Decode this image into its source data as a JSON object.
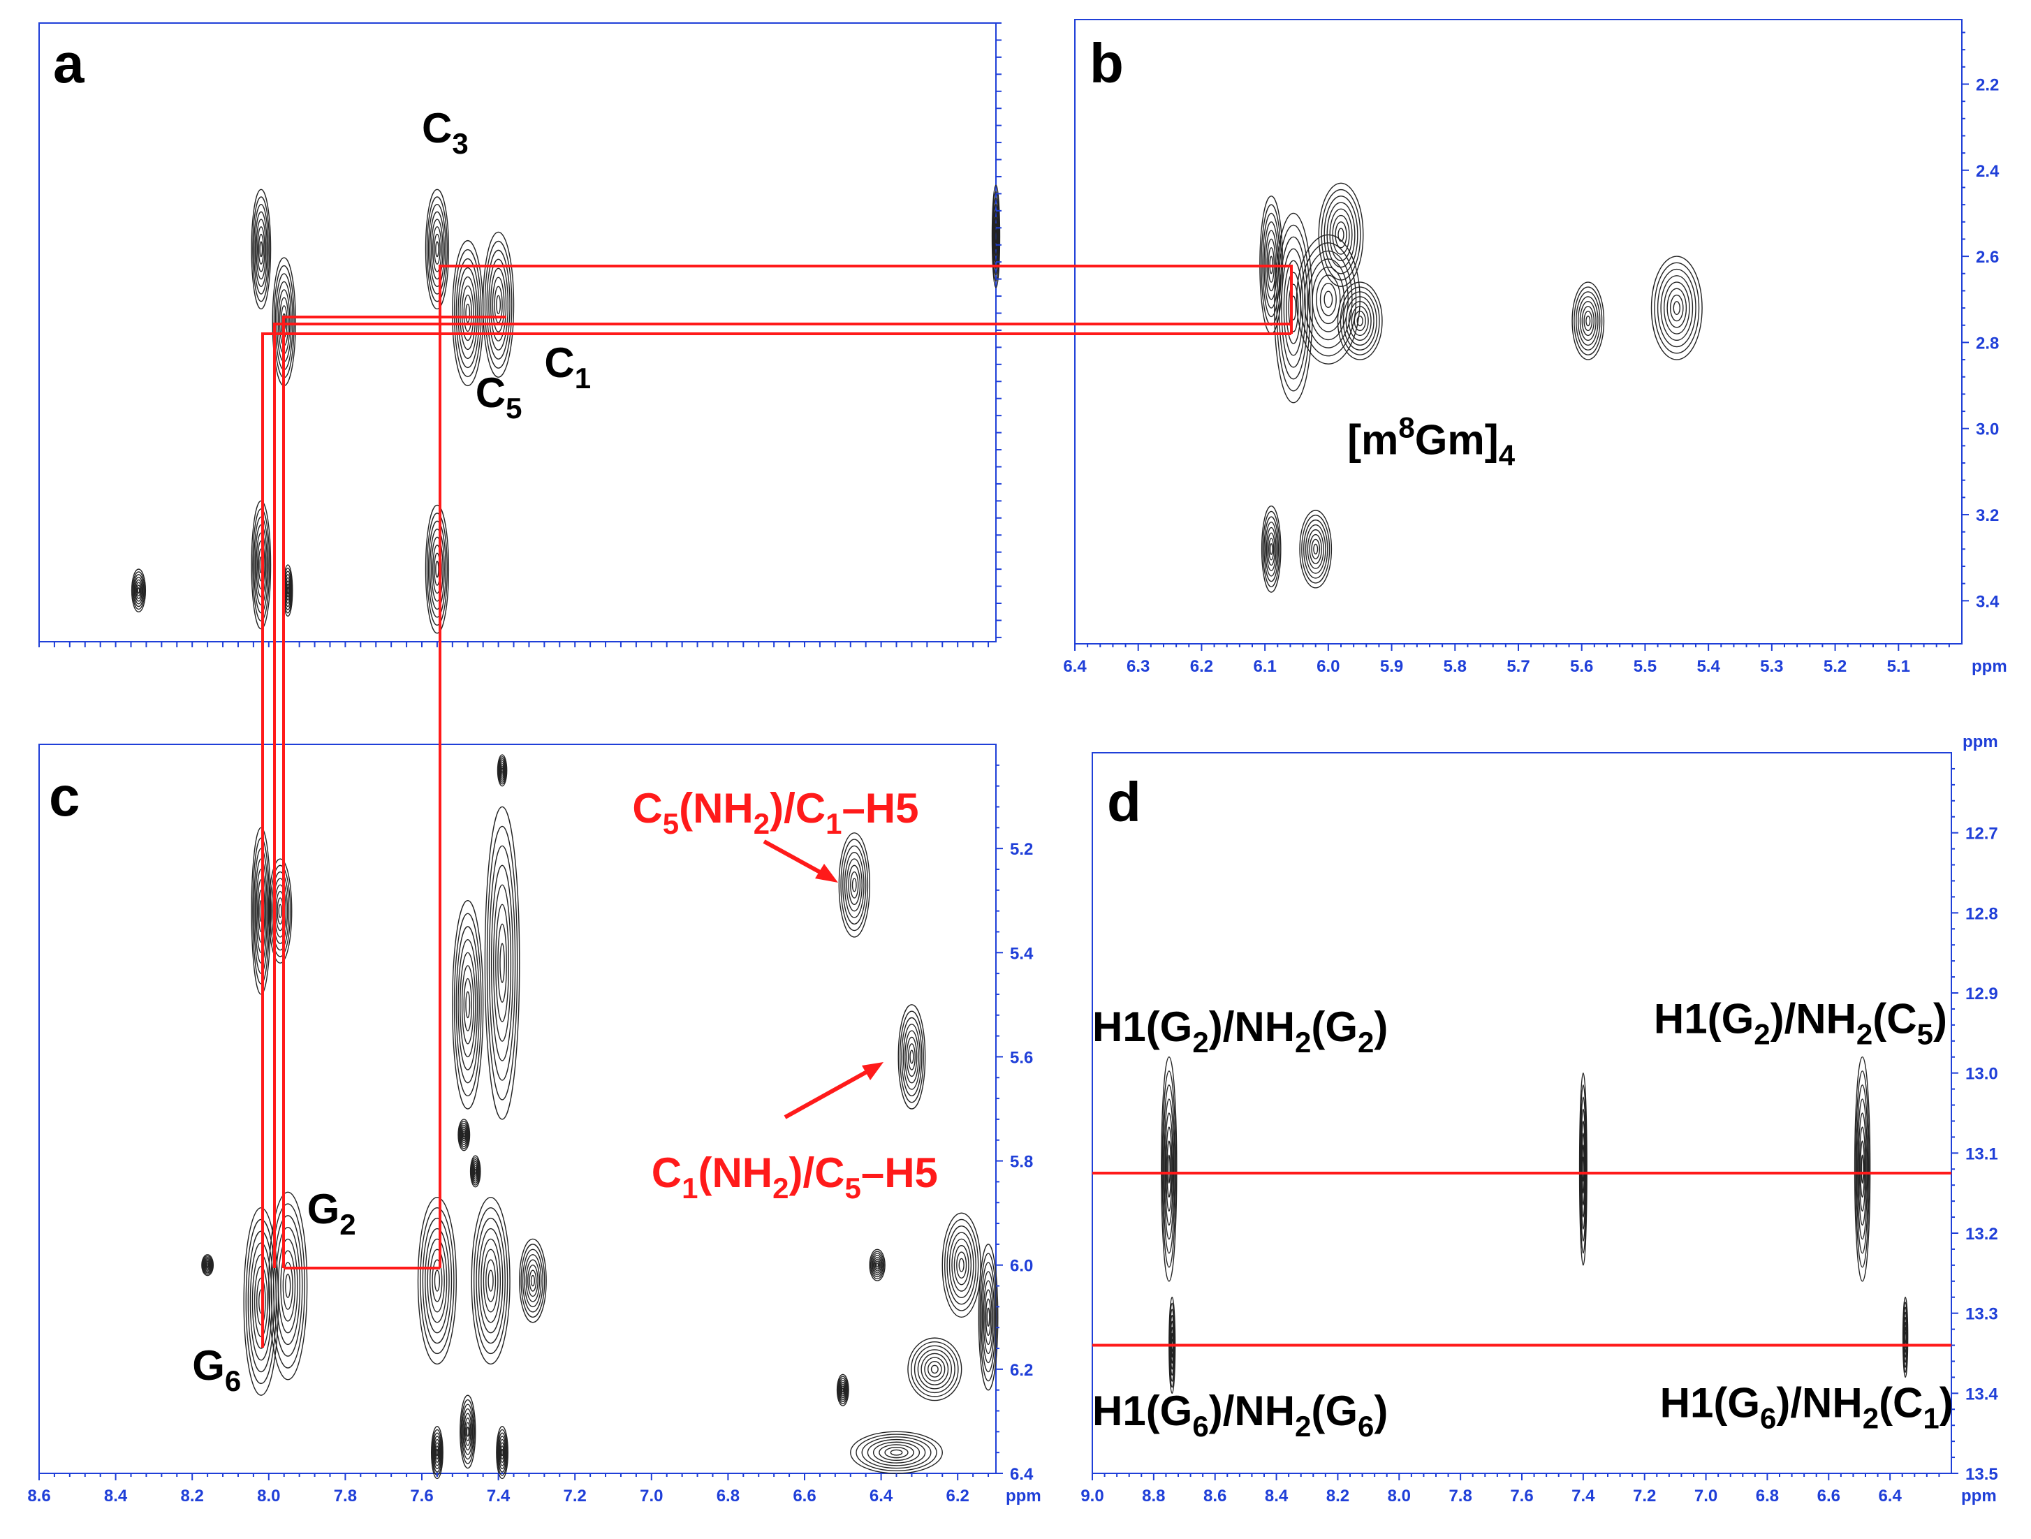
{
  "colors": {
    "axis": "#1f3fd8",
    "peak": "#222222",
    "highlight": "#ff1a1a"
  },
  "axis_unit": "ppm",
  "chart_data": [
    {
      "type": "scatter",
      "panel": "a",
      "panel_label": "a",
      "title": "",
      "xlabel": "",
      "ylabel": "",
      "xlim": [
        8.6,
        6.1
      ],
      "ylim": [
        2.05,
        3.5
      ],
      "reversed_axes": true,
      "x_ticks": [],
      "y_ticks": [],
      "annotations": [
        {
          "text": "C",
          "sub": "3",
          "x": 7.6,
          "y": 2.33
        },
        {
          "text": "C",
          "sub": "5",
          "x": 7.46,
          "y": 2.95
        },
        {
          "text": "C",
          "sub": "1",
          "x": 7.28,
          "y": 2.88
        }
      ],
      "peaks": [
        {
          "x": 8.02,
          "y": 2.58,
          "w": 0.025,
          "h": 0.14,
          "label": ""
        },
        {
          "x": 7.96,
          "y": 2.75,
          "w": 0.03,
          "h": 0.15,
          "label": ""
        },
        {
          "x": 7.56,
          "y": 2.58,
          "w": 0.03,
          "h": 0.14,
          "label": "C3"
        },
        {
          "x": 7.48,
          "y": 2.73,
          "w": 0.04,
          "h": 0.17,
          "label": "C5"
        },
        {
          "x": 7.4,
          "y": 2.71,
          "w": 0.04,
          "h": 0.17,
          "label": "C1"
        },
        {
          "x": 8.02,
          "y": 3.32,
          "w": 0.025,
          "h": 0.15,
          "label": ""
        },
        {
          "x": 7.56,
          "y": 3.33,
          "w": 0.03,
          "h": 0.15,
          "label": ""
        },
        {
          "x": 7.95,
          "y": 3.38,
          "w": 0.012,
          "h": 0.06,
          "label": ""
        },
        {
          "x": 8.34,
          "y": 3.38,
          "w": 0.018,
          "h": 0.05,
          "label": ""
        },
        {
          "x": 6.1,
          "y": 2.55,
          "w": 0.01,
          "h": 0.12,
          "label": ""
        }
      ]
    },
    {
      "type": "scatter",
      "panel": "b",
      "panel_label": "b",
      "title": "",
      "xlabel": "ppm",
      "ylabel": "",
      "xlim": [
        6.4,
        5.0
      ],
      "ylim": [
        2.05,
        3.5
      ],
      "reversed_axes": true,
      "x_ticks": [
        6.4,
        6.3,
        6.2,
        6.1,
        6.0,
        5.9,
        5.8,
        5.7,
        5.6,
        5.5,
        5.4,
        5.3,
        5.2,
        5.1
      ],
      "y_ticks": [
        2.2,
        2.4,
        2.6,
        2.8,
        3.0,
        3.2,
        3.4
      ],
      "annotations": [
        {
          "text": "[m",
          "sup": "8",
          "mid": "Gm]",
          "sub": "4",
          "x": 5.97,
          "y": 3.06
        }
      ],
      "peaks": [
        {
          "x": 6.09,
          "y": 2.62,
          "w": 0.018,
          "h": 0.16,
          "label": ""
        },
        {
          "x": 6.055,
          "y": 2.72,
          "w": 0.03,
          "h": 0.22,
          "label": ""
        },
        {
          "x": 6.0,
          "y": 2.7,
          "w": 0.05,
          "h": 0.15,
          "label": ""
        },
        {
          "x": 5.98,
          "y": 2.55,
          "w": 0.035,
          "h": 0.12,
          "label": ""
        },
        {
          "x": 5.95,
          "y": 2.75,
          "w": 0.035,
          "h": 0.09,
          "label": ""
        },
        {
          "x": 5.59,
          "y": 2.75,
          "w": 0.025,
          "h": 0.09,
          "label": ""
        },
        {
          "x": 5.45,
          "y": 2.72,
          "w": 0.04,
          "h": 0.12,
          "label": ""
        },
        {
          "x": 6.09,
          "y": 3.28,
          "w": 0.015,
          "h": 0.1,
          "label": ""
        },
        {
          "x": 6.02,
          "y": 3.28,
          "w": 0.025,
          "h": 0.09,
          "label": ""
        }
      ]
    },
    {
      "type": "scatter",
      "panel": "c",
      "panel_label": "c",
      "title": "",
      "xlabel": "ppm",
      "ylabel": "",
      "xlim": [
        8.6,
        6.1
      ],
      "ylim": [
        5.0,
        6.4
      ],
      "reversed_axes": true,
      "x_ticks": [
        8.6,
        8.4,
        8.2,
        8.0,
        7.8,
        7.6,
        7.4,
        7.2,
        7.0,
        6.8,
        6.6,
        6.4,
        6.2
      ],
      "y_ticks": [
        5.2,
        5.4,
        5.6,
        5.8,
        6.0,
        6.2,
        6.4
      ],
      "annotations": [
        {
          "text": "G",
          "sub": "2",
          "x": 7.9,
          "y": 5.92
        },
        {
          "text": "G",
          "sub": "6",
          "x": 8.2,
          "y": 6.22
        },
        {
          "text": "C",
          "sub": "5",
          "after": "(NH",
          "sub2": "2",
          "after2": ")/C",
          "sub3": "1",
          "after3": "–H5",
          "x": 7.05,
          "y": 5.15,
          "red": true
        },
        {
          "text": "C",
          "sub": "1",
          "after": "(NH",
          "sub2": "2",
          "after2": ")/C",
          "sub3": "5",
          "after3": "–H5",
          "x": 7.0,
          "y": 5.85,
          "red": true
        }
      ],
      "peaks": [
        {
          "x": 8.02,
          "y": 5.32,
          "w": 0.025,
          "h": 0.16,
          "label": ""
        },
        {
          "x": 7.97,
          "y": 5.32,
          "w": 0.03,
          "h": 0.1,
          "label": ""
        },
        {
          "x": 7.48,
          "y": 5.5,
          "w": 0.04,
          "h": 0.2,
          "label": ""
        },
        {
          "x": 7.39,
          "y": 5.42,
          "w": 0.045,
          "h": 0.3,
          "label": ""
        },
        {
          "x": 7.39,
          "y": 5.05,
          "w": 0.012,
          "h": 0.03,
          "label": ""
        },
        {
          "x": 6.47,
          "y": 5.27,
          "w": 0.04,
          "h": 0.1,
          "label": "C5(NH2)/C1-H5"
        },
        {
          "x": 6.32,
          "y": 5.6,
          "w": 0.035,
          "h": 0.1,
          "label": "C1(NH2)/C5-H5"
        },
        {
          "x": 7.49,
          "y": 5.75,
          "w": 0.015,
          "h": 0.03,
          "label": ""
        },
        {
          "x": 7.46,
          "y": 5.82,
          "w": 0.013,
          "h": 0.03,
          "label": ""
        },
        {
          "x": 8.02,
          "y": 6.07,
          "w": 0.045,
          "h": 0.18,
          "label": "G6"
        },
        {
          "x": 7.95,
          "y": 6.04,
          "w": 0.05,
          "h": 0.18,
          "label": "G2"
        },
        {
          "x": 7.56,
          "y": 6.03,
          "w": 0.05,
          "h": 0.16,
          "label": ""
        },
        {
          "x": 7.42,
          "y": 6.03,
          "w": 0.05,
          "h": 0.16,
          "label": ""
        },
        {
          "x": 7.31,
          "y": 6.03,
          "w": 0.035,
          "h": 0.08,
          "label": ""
        },
        {
          "x": 8.16,
          "y": 6.0,
          "w": 0.015,
          "h": 0.02,
          "label": ""
        },
        {
          "x": 7.48,
          "y": 6.32,
          "w": 0.02,
          "h": 0.07,
          "label": ""
        },
        {
          "x": 7.56,
          "y": 6.36,
          "w": 0.015,
          "h": 0.05,
          "label": ""
        },
        {
          "x": 7.39,
          "y": 6.36,
          "w": 0.015,
          "h": 0.05,
          "label": ""
        },
        {
          "x": 6.36,
          "y": 6.36,
          "w": 0.12,
          "h": 0.04,
          "label": ""
        },
        {
          "x": 6.26,
          "y": 6.2,
          "w": 0.07,
          "h": 0.06,
          "label": ""
        },
        {
          "x": 6.19,
          "y": 6.0,
          "w": 0.05,
          "h": 0.1,
          "label": ""
        },
        {
          "x": 6.41,
          "y": 6.0,
          "w": 0.02,
          "h": 0.03,
          "label": ""
        },
        {
          "x": 6.5,
          "y": 6.24,
          "w": 0.015,
          "h": 0.03,
          "label": ""
        },
        {
          "x": 6.12,
          "y": 6.1,
          "w": 0.025,
          "h": 0.14,
          "label": ""
        }
      ]
    },
    {
      "type": "scatter",
      "panel": "d",
      "panel_label": "d",
      "title": "",
      "xlabel": "ppm",
      "ylabel": "ppm",
      "xlim": [
        9.0,
        6.2
      ],
      "ylim": [
        12.6,
        13.5
      ],
      "reversed_axes": true,
      "x_ticks": [
        9.0,
        8.8,
        8.6,
        8.4,
        8.2,
        8.0,
        7.8,
        7.6,
        7.4,
        7.2,
        7.0,
        6.8,
        6.6,
        6.4
      ],
      "y_ticks": [
        12.7,
        12.8,
        12.9,
        13.0,
        13.1,
        13.2,
        13.3,
        13.4,
        13.5
      ],
      "annotations": [
        {
          "text": "H1(G",
          "sub": "2",
          "after": ")/NH",
          "sub2": "2",
          "after2": "(G",
          "sub3": "2",
          "after3": ")",
          "x": 9.0,
          "y": 12.96
        },
        {
          "text": "H1(G",
          "sub": "2",
          "after": ")/NH",
          "sub2": "2",
          "after2": "(C",
          "sub3": "5",
          "after3": ")",
          "x": 7.17,
          "y": 12.95
        },
        {
          "text": "H1(G",
          "sub": "6",
          "after": ")/NH",
          "sub2": "2",
          "after2": "(G",
          "sub3": "6",
          "after3": ")",
          "x": 9.0,
          "y": 13.44
        },
        {
          "text": "H1(G",
          "sub": "6",
          "after": ")/NH",
          "sub2": "2",
          "after2": "(C",
          "sub3": "1",
          "after3": ")",
          "x": 7.15,
          "y": 13.43
        }
      ],
      "peaks": [
        {
          "x": 8.75,
          "y": 13.12,
          "w": 0.025,
          "h": 0.14,
          "label": ""
        },
        {
          "x": 7.4,
          "y": 13.12,
          "w": 0.012,
          "h": 0.12,
          "label": ""
        },
        {
          "x": 6.49,
          "y": 13.12,
          "w": 0.025,
          "h": 0.14,
          "label": ""
        },
        {
          "x": 8.74,
          "y": 13.34,
          "w": 0.01,
          "h": 0.06,
          "label": ""
        },
        {
          "x": 6.35,
          "y": 13.33,
          "w": 0.008,
          "h": 0.05,
          "label": ""
        }
      ],
      "horizontal_lines_y": [
        13.125,
        13.34
      ]
    }
  ]
}
